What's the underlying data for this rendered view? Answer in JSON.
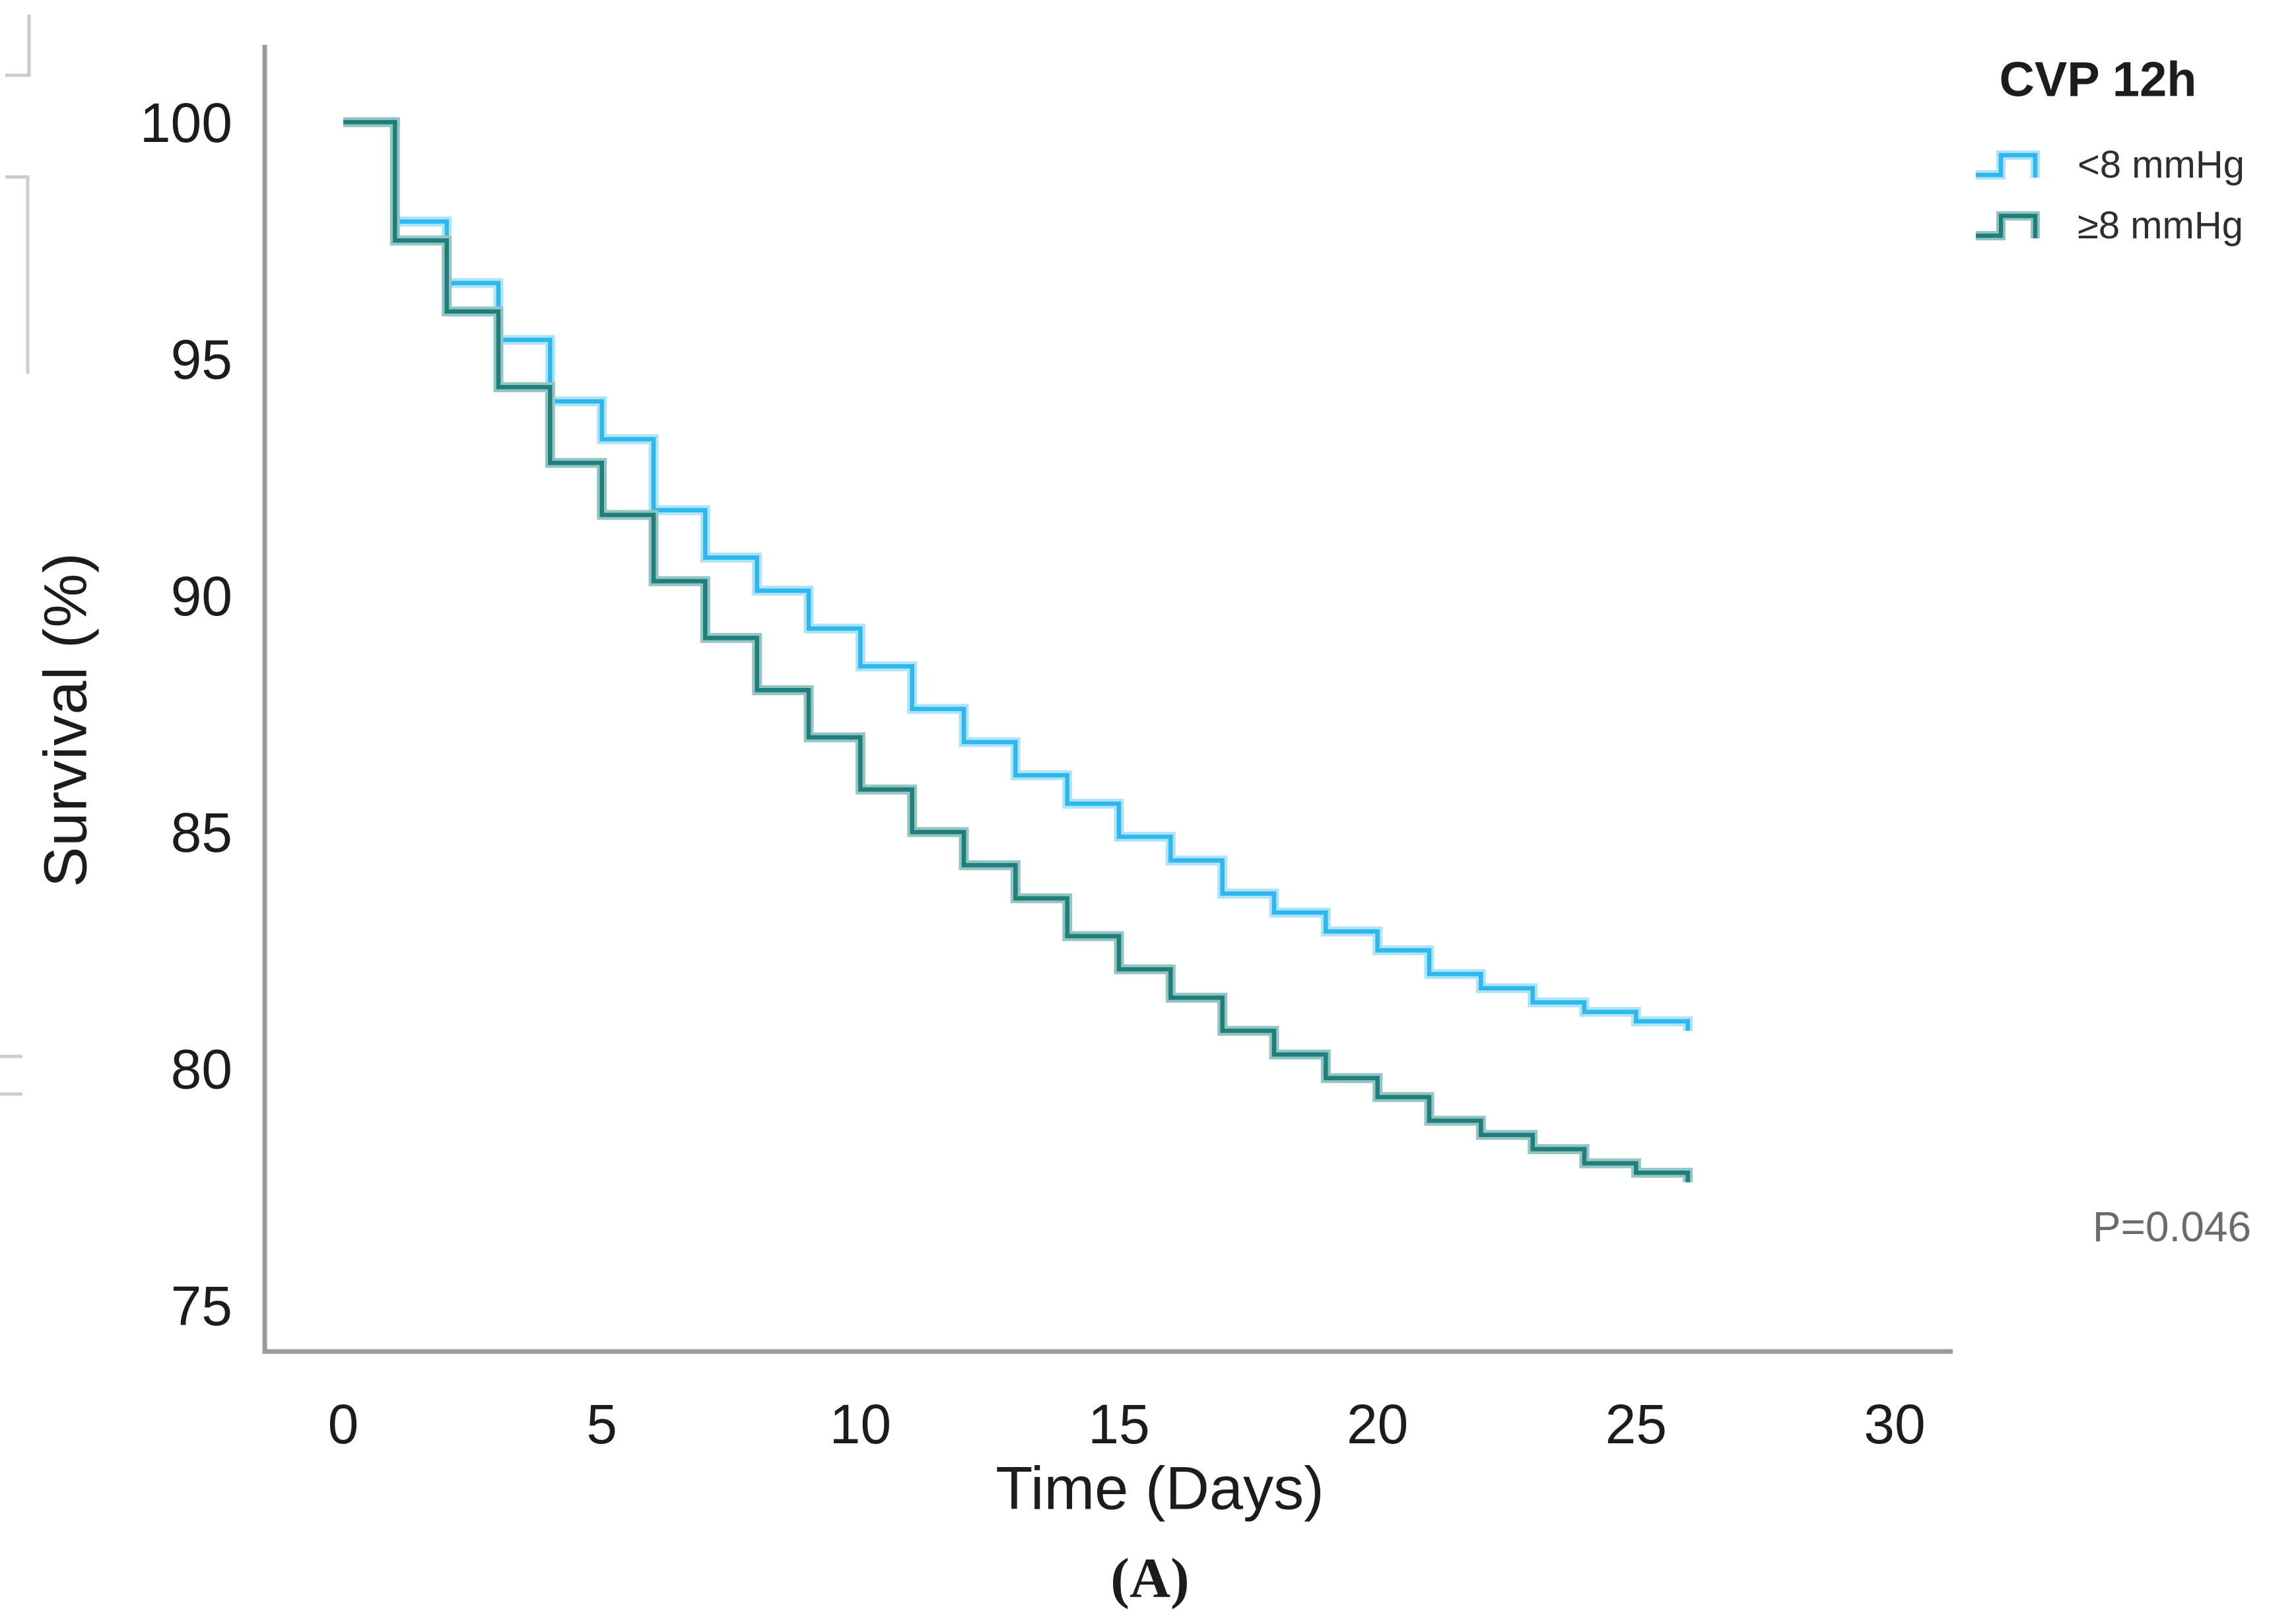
{
  "figure_label": "(A)",
  "p_value": "P=0.046",
  "legend": {
    "title": "CVP 12h",
    "items": [
      {
        "label": "<8 mmHg",
        "color": "#2eb7ec",
        "halo": "#aee4f8"
      },
      {
        "label": "≥8 mmHg",
        "color": "#207e7b",
        "halo": "#93c6c3"
      }
    ]
  },
  "colors": {
    "axis": "#9a9a9a",
    "tick_text": "#1c1c1c",
    "p_text": "#6b6b6b",
    "artifact": "#cccccc"
  },
  "chart_data": {
    "type": "line",
    "subtype": "kaplan-meier-step",
    "title": "CVP 12h",
    "xlabel": "Time (Days)",
    "ylabel": "Survival (%)",
    "x_ticks": [
      0,
      5,
      10,
      15,
      20,
      25,
      30
    ],
    "y_ticks": [
      100,
      95,
      90,
      85,
      80,
      75
    ],
    "xlim": [
      -1.5,
      31
    ],
    "ylim": [
      74,
      100.6
    ],
    "grid": false,
    "legend_position": "top-right",
    "step_mode": "after",
    "annotation": "P=0.046",
    "x": [
      0,
      1,
      2,
      3,
      4,
      5,
      6,
      7,
      8,
      9,
      10,
      11,
      12,
      13,
      14,
      15,
      16,
      17,
      18,
      19,
      20,
      21,
      22,
      23,
      24,
      25,
      26
    ],
    "series": [
      {
        "name": "<8 mmHg",
        "color": "#2eb7ec",
        "halo": "#aee4f8",
        "values": [
          100,
          97.9,
          96.6,
          95.4,
          94.1,
          93.3,
          91.8,
          90.8,
          90.1,
          89.3,
          88.5,
          87.6,
          86.9,
          86.2,
          85.6,
          84.9,
          84.4,
          83.7,
          83.3,
          82.9,
          82.5,
          82.0,
          81.7,
          81.4,
          81.2,
          81.0,
          80.8
        ]
      },
      {
        "name": "≥8 mmHg",
        "color": "#207e7b",
        "halo": "#93c6c3",
        "values": [
          100,
          97.5,
          96.0,
          94.4,
          92.8,
          91.7,
          90.3,
          89.1,
          88.0,
          87.0,
          85.9,
          85.0,
          84.3,
          83.6,
          82.8,
          82.1,
          81.5,
          80.8,
          80.3,
          79.8,
          79.4,
          78.9,
          78.6,
          78.3,
          78.0,
          77.8,
          77.6
        ]
      }
    ]
  }
}
